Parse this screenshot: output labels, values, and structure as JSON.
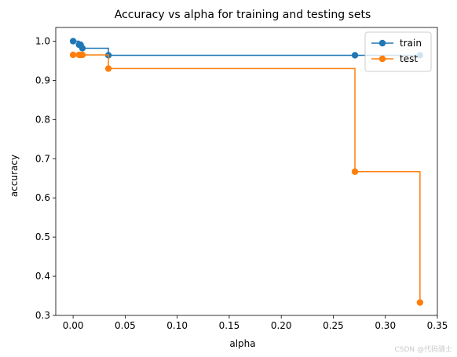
{
  "chart_data": {
    "type": "line",
    "title": "Accuracy vs alpha for training and testing sets",
    "xlabel": "alpha",
    "ylabel": "accuracy",
    "xlim": [
      -0.0167,
      0.35
    ],
    "ylim": [
      0.3,
      1.035
    ],
    "xticks": [
      0.0,
      0.05,
      0.1,
      0.15,
      0.2,
      0.25,
      0.3,
      0.35
    ],
    "xtick_labels": [
      "0.00",
      "0.05",
      "0.10",
      "0.15",
      "0.20",
      "0.25",
      "0.30",
      "0.35"
    ],
    "yticks": [
      0.3,
      0.4,
      0.5,
      0.6,
      0.7,
      0.8,
      0.9,
      1.0
    ],
    "ytick_labels": [
      "0.3",
      "0.4",
      "0.5",
      "0.6",
      "0.7",
      "0.8",
      "0.9",
      "1.0"
    ],
    "grid": false,
    "legend_position": "top-right",
    "drawstyle": "steps-post",
    "marker": "o",
    "series": [
      {
        "name": "train",
        "color": "#1f77b4",
        "x": [
          0.0,
          0.0057,
          0.0071,
          0.0089,
          0.0339,
          0.2708,
          0.3333
        ],
        "y": [
          1.0,
          0.991,
          0.991,
          0.982,
          0.964,
          0.964,
          0.964
        ]
      },
      {
        "name": "test",
        "color": "#ff7f0e",
        "x": [
          0.0,
          0.0057,
          0.0071,
          0.0089,
          0.0339,
          0.2708,
          0.3333
        ],
        "y": [
          0.965,
          0.965,
          0.965,
          0.965,
          0.93,
          0.667,
          0.333
        ]
      }
    ]
  },
  "watermark": "CSDN @代码骑士"
}
